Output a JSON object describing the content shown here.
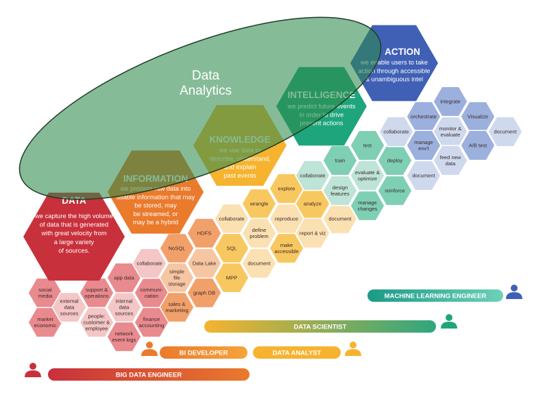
{
  "colors": {
    "data": "#c8303b",
    "information": "#ea7a2c",
    "knowledge": "#f6b32f",
    "intelligence": "#1fa57c",
    "action": "#3f60b5",
    "ellipse_fill": "#2f8a4e",
    "ellipse_stroke": "#1d3d24"
  },
  "ellipse_label": "Data\nAnalytics",
  "stages": [
    {
      "key": "data",
      "title": "DATA",
      "body": "we capture the high volume\nof data that is generated\nwith great velocity from\na large variety\nof sources."
    },
    {
      "key": "information",
      "title": "INFORMATION",
      "body": "we process raw data into\nusable information that may\nbe stored, may\nbe streamed, or\nmay be a hybrid"
    },
    {
      "key": "knowledge",
      "title": "KNOWLEDGE",
      "body": "we use data to\ndescribe, understand,\nand explain\npast events"
    },
    {
      "key": "intelligence",
      "title": "INTELLIGENCE",
      "body": "we predict future events\nin order to drive\npresent actions"
    },
    {
      "key": "action",
      "title": "ACTION",
      "body": "we enable users to take\naction through accessible\n& unambiguous intel"
    }
  ],
  "cells": [
    {
      "label": "social\nmedia",
      "color": "#e98a8e"
    },
    {
      "label": "market\neconomic",
      "color": "#e98a8e"
    },
    {
      "label": "external\ndata\nsources",
      "color": "#f4c6c6"
    },
    {
      "label": "support &\noperations",
      "color": "#e98a8e"
    },
    {
      "label": "people:\ncustomer &\nemployee",
      "color": "#f4c6c6"
    },
    {
      "label": "internal\ndata\nsources",
      "color": "#f4c6c6"
    },
    {
      "label": "app data",
      "color": "#e98a8e"
    },
    {
      "label": "communi-\ncation",
      "color": "#e98a8e"
    },
    {
      "label": "finance\naccounting",
      "color": "#e98a8e"
    },
    {
      "label": "network\nevent logs",
      "color": "#e98a8e"
    },
    {
      "label": "collaborate",
      "color": "#f4c6c6"
    },
    {
      "label": "NoSQL",
      "color": "#f2a06a"
    },
    {
      "label": "HDFS",
      "color": "#f2a06a"
    },
    {
      "label": "simple\nfile\nstorage",
      "color": "#f6c6a2"
    },
    {
      "label": "Data Lake",
      "color": "#f6c6a2"
    },
    {
      "label": "sales &\nmarketing",
      "color": "#f2a06a"
    },
    {
      "label": "graph DB",
      "color": "#f2a06a"
    },
    {
      "label": "collaborate",
      "color": "#fbe0b2"
    },
    {
      "label": "SQL",
      "color": "#f8c860"
    },
    {
      "label": "MPP",
      "color": "#f8c860"
    },
    {
      "label": "wrangle",
      "color": "#f8c860"
    },
    {
      "label": "define\nproblem",
      "color": "#fbe0b2"
    },
    {
      "label": "document",
      "color": "#fbe0b2"
    },
    {
      "label": "explore",
      "color": "#f8c860"
    },
    {
      "label": "reproduce",
      "color": "#fbe0b2"
    },
    {
      "label": "make\naccessible",
      "color": "#f8c860"
    },
    {
      "label": "analyze",
      "color": "#f8c860"
    },
    {
      "label": "report & viz",
      "color": "#fbe0b2"
    },
    {
      "label": "document",
      "color": "#fbe0b2"
    },
    {
      "label": "collaborate",
      "color": "#bde4d6"
    },
    {
      "label": "train",
      "color": "#7fcfb4"
    },
    {
      "label": "design\nfeatures",
      "color": "#bde4d6"
    },
    {
      "label": "test",
      "color": "#7fcfb4"
    },
    {
      "label": "evaluate &\noptimize",
      "color": "#bde4d6"
    },
    {
      "label": "manage\nchanges",
      "color": "#7fcfb4"
    },
    {
      "label": "deploy",
      "color": "#7fcfb4"
    },
    {
      "label": "reinforce",
      "color": "#7fcfb4"
    },
    {
      "label": "collaborate",
      "color": "#cfd9ee"
    },
    {
      "label": "orchestrate",
      "color": "#9cb0de"
    },
    {
      "label": "manage\nenv't",
      "color": "#9cb0de"
    },
    {
      "label": "document",
      "color": "#cfd9ee"
    },
    {
      "label": "integrate",
      "color": "#9cb0de"
    },
    {
      "label": "monitor &\nevaluate",
      "color": "#cfd9ee"
    },
    {
      "label": "feed new\ndata",
      "color": "#cfd9ee"
    },
    {
      "label": "Visualize",
      "color": "#9cb0de"
    },
    {
      "label": "A/B test",
      "color": "#9cb0de"
    },
    {
      "label": "document",
      "color": "#cfd9ee"
    }
  ],
  "roles": [
    {
      "label": "MACHINE LEARNING ENGINEER",
      "colors": [
        "#1b9a86",
        "#6fd0b8"
      ],
      "person_color": "#3f60b5"
    },
    {
      "label": "DATA SCIENTIST",
      "colors": [
        "#f6b32f",
        "#2fa67e"
      ],
      "person_color": "#1fa57c"
    },
    {
      "label": "BI DEVELOPER",
      "colors": [
        "#ea7a2c",
        "#f6a43a"
      ],
      "person_color": "#ea7a2c"
    },
    {
      "label": "DATA ANALYST",
      "colors": [
        "#f6b32f",
        "#f6b32f"
      ],
      "person_color": "#f6b32f"
    },
    {
      "label": "BIG DATA ENGINEER",
      "colors": [
        "#c8303b",
        "#ea7a2c"
      ],
      "person_color": "#c8303b"
    }
  ]
}
